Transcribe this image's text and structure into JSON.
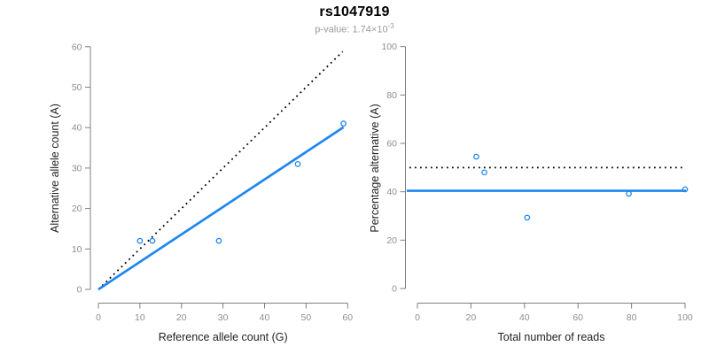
{
  "header": {
    "title": "rs1047919",
    "subtitle_prefix": "p-value: 1.74×10",
    "subtitle_exponent": "-3"
  },
  "colors": {
    "accent_blue": "#1e87f0",
    "dotted_black": "#000000",
    "axis_line": "#7f7f7f",
    "tick_label": "#8f8f8f",
    "axis_title": "#1f1f1f",
    "subtitle_gray": "#9b9b9b"
  },
  "chart_data": [
    {
      "type": "scatter",
      "panel": "allele-counts",
      "xlabel": "Reference allele count (G)",
      "ylabel": "Alternative allele count (A)",
      "xlim": [
        0,
        60
      ],
      "ylim": [
        0,
        60
      ],
      "xticks": [
        0,
        10,
        20,
        30,
        40,
        50,
        60
      ],
      "yticks": [
        0,
        10,
        20,
        30,
        40,
        50,
        60
      ],
      "grid": false,
      "legend": false,
      "points": [
        [
          10,
          12
        ],
        [
          13,
          12
        ],
        [
          29,
          12
        ],
        [
          48,
          31
        ],
        [
          59,
          41
        ]
      ],
      "lines": [
        {
          "name": "identity-line",
          "style": "dotted",
          "color": "#000000",
          "x1": 0,
          "y1": 0,
          "x2": 58.8,
          "y2": 58.8
        },
        {
          "name": "allelic-ratio-fit-line",
          "style": "solid",
          "color": "#1e87f0",
          "x1": 0,
          "y1": 0,
          "x2": 59,
          "y2": 40.1
        }
      ]
    },
    {
      "type": "scatter",
      "panel": "percentage-alternative",
      "xlabel": "Total number of reads",
      "ylabel": "Percentage alternative (A)",
      "xlim": [
        0,
        100
      ],
      "ylim": [
        0,
        100
      ],
      "xticks": [
        0,
        20,
        40,
        60,
        80,
        100
      ],
      "yticks": [
        0,
        20,
        40,
        60,
        80,
        100
      ],
      "grid": false,
      "legend": false,
      "points": [
        [
          22,
          54.5
        ],
        [
          25,
          48
        ],
        [
          41,
          29.3
        ],
        [
          79,
          39.2
        ],
        [
          100,
          41
        ]
      ],
      "lines": [
        {
          "name": "fifty-percent-line",
          "style": "dotted",
          "color": "#000000",
          "x1": -3,
          "y1": 50,
          "x2": 99.6,
          "y2": 50
        },
        {
          "name": "mean-percentage-line",
          "style": "solid",
          "color": "#1e87f0",
          "x1": -4,
          "y1": 40.4,
          "x2": 100.4,
          "y2": 40.4
        }
      ]
    }
  ]
}
